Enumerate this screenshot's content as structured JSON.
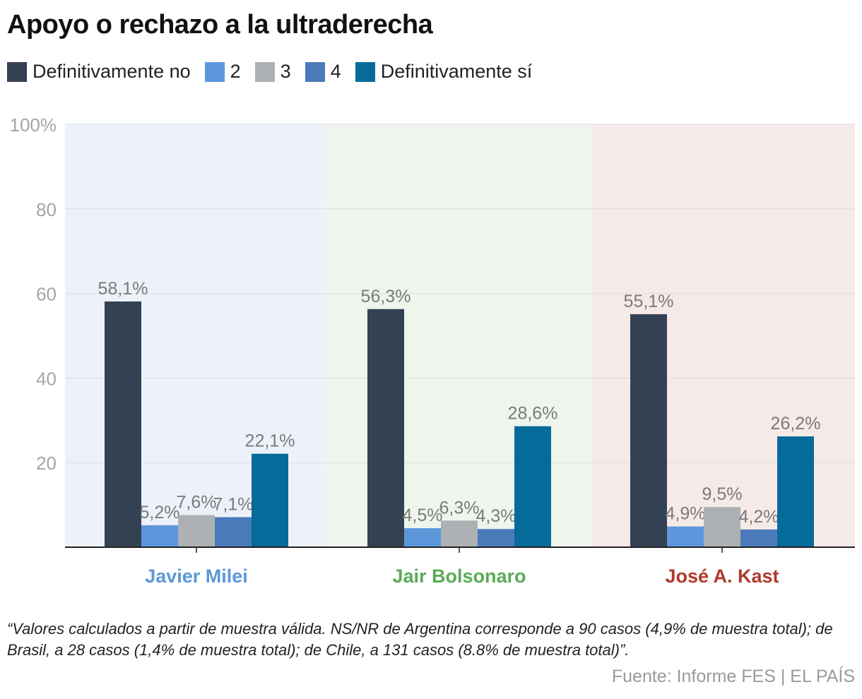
{
  "title": "Apoyo o rechazo a la ultraderecha",
  "legend": [
    {
      "label": "Definitivamente no",
      "color": "#344153"
    },
    {
      "label": "2",
      "color": "#5d97db"
    },
    {
      "label": "3",
      "color": "#adb1b3"
    },
    {
      "label": "4",
      "color": "#4b7abb"
    },
    {
      "label": "Definitivamente sí",
      "color": "#066b9a"
    }
  ],
  "chart_data": {
    "type": "bar",
    "categories": [
      "Javier Milei",
      "Jair Bolsonaro",
      "José A. Kast"
    ],
    "category_colors": [
      "#5d97db",
      "#5aab56",
      "#b0392a"
    ],
    "panel_colors": [
      "#edf2fa",
      "#eef5ed",
      "#f6eae8"
    ],
    "series": [
      {
        "name": "Definitivamente no",
        "values": [
          58.1,
          56.3,
          55.1
        ],
        "labels": [
          "58,1%",
          "56,3%",
          "55,1%"
        ]
      },
      {
        "name": "2",
        "values": [
          5.2,
          4.5,
          4.9
        ],
        "labels": [
          "5,2%",
          "4,5%",
          "4,9%"
        ]
      },
      {
        "name": "3",
        "values": [
          7.6,
          6.3,
          9.5
        ],
        "labels": [
          "7,6%",
          "6,3%",
          "9,5%"
        ]
      },
      {
        "name": "4",
        "values": [
          7.1,
          4.3,
          4.2
        ],
        "labels": [
          "7,1%",
          "4,3%",
          "4,2%"
        ]
      },
      {
        "name": "Definitivamente sí",
        "values": [
          22.1,
          28.6,
          26.2
        ],
        "labels": [
          "22,1%",
          "28,6%",
          "26,2%"
        ]
      }
    ],
    "yticks": [
      100,
      80,
      60,
      40,
      20
    ],
    "ytick_labels": [
      "100%",
      "80",
      "60",
      "40",
      "20"
    ],
    "ylim": [
      0,
      100
    ],
    "title": "Apoyo o rechazo a la ultraderecha",
    "xlabel": "",
    "ylabel": ""
  },
  "note": "“Valores calculados a partir de muestra válida. NS/NR de Argentina corresponde a 90 casos (4,9% de muestra total); de Brasil, a 28 casos (1,4% de muestra total); de Chile, a 131 casos (8.8% de muestra total)”.",
  "source": "Fuente: Informe FES | EL PAÍS"
}
